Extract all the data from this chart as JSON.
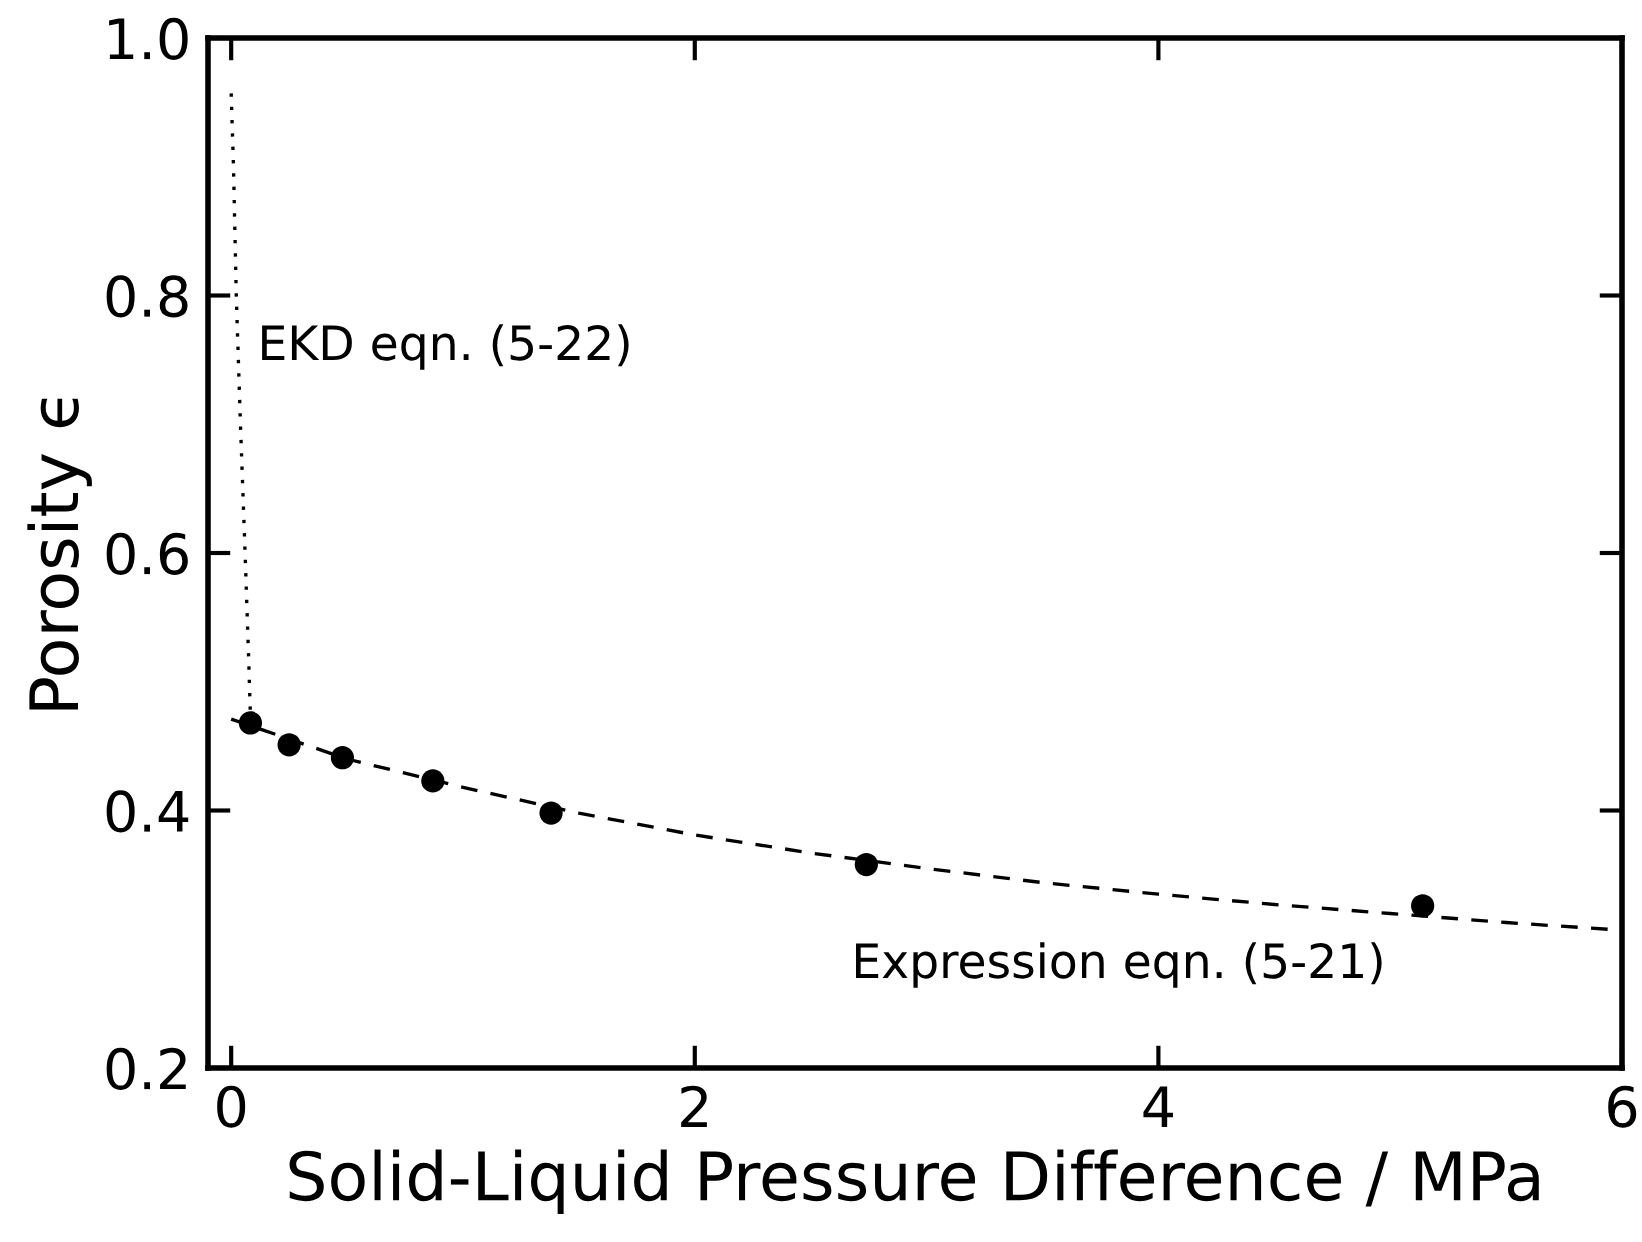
{
  "chart_data": {
    "type": "scatter",
    "xlabel": "Solid-Liquid Pressure Difference / MPa",
    "ylabel": "Porosity ϵ",
    "xlim": [
      -0.1,
      6
    ],
    "ylim": [
      0.2,
      1.0
    ],
    "xticks": [
      0,
      2,
      4,
      6
    ],
    "yticks": [
      0.2,
      0.4,
      0.6,
      0.8,
      {
        "value": 1.0,
        "label": "1.0"
      }
    ],
    "grid": false,
    "legend": false,
    "series": [
      {
        "color": "#000000",
        "marker": "circle",
        "x": [
          0.083,
          0.25,
          0.48,
          0.87,
          1.38,
          2.74,
          5.14
        ],
        "values": [
          0.468,
          0.451,
          0.441,
          0.423,
          0.398,
          0.358,
          0.326
        ]
      },
      {
        "type": "line",
        "color": "#000000",
        "line_style": "dashed",
        "marker": "none",
        "x": [
          0,
          0.5,
          1,
          1.5,
          2,
          2.5,
          3,
          3.5,
          4,
          4.5,
          5,
          5.5,
          6
        ],
        "values": [
          0.471,
          0.44,
          0.418,
          0.398,
          0.381,
          0.367,
          0.355,
          0.344,
          0.335,
          0.327,
          0.32,
          0.313,
          0.307
        ]
      },
      {
        "type": "line",
        "color": "#000000",
        "line_style": "dotted",
        "marker": "none",
        "x": [
          0,
          0.01,
          0.022,
          0.04,
          0.06,
          0.075,
          0.083
        ],
        "values": [
          0.957,
          0.9,
          0.8,
          0.7,
          0.6,
          0.52,
          0.473
        ]
      }
    ],
    "annotations": [
      "EKD eqn. (5-22)",
      "Expression eqn. (5-21)"
    ]
  }
}
